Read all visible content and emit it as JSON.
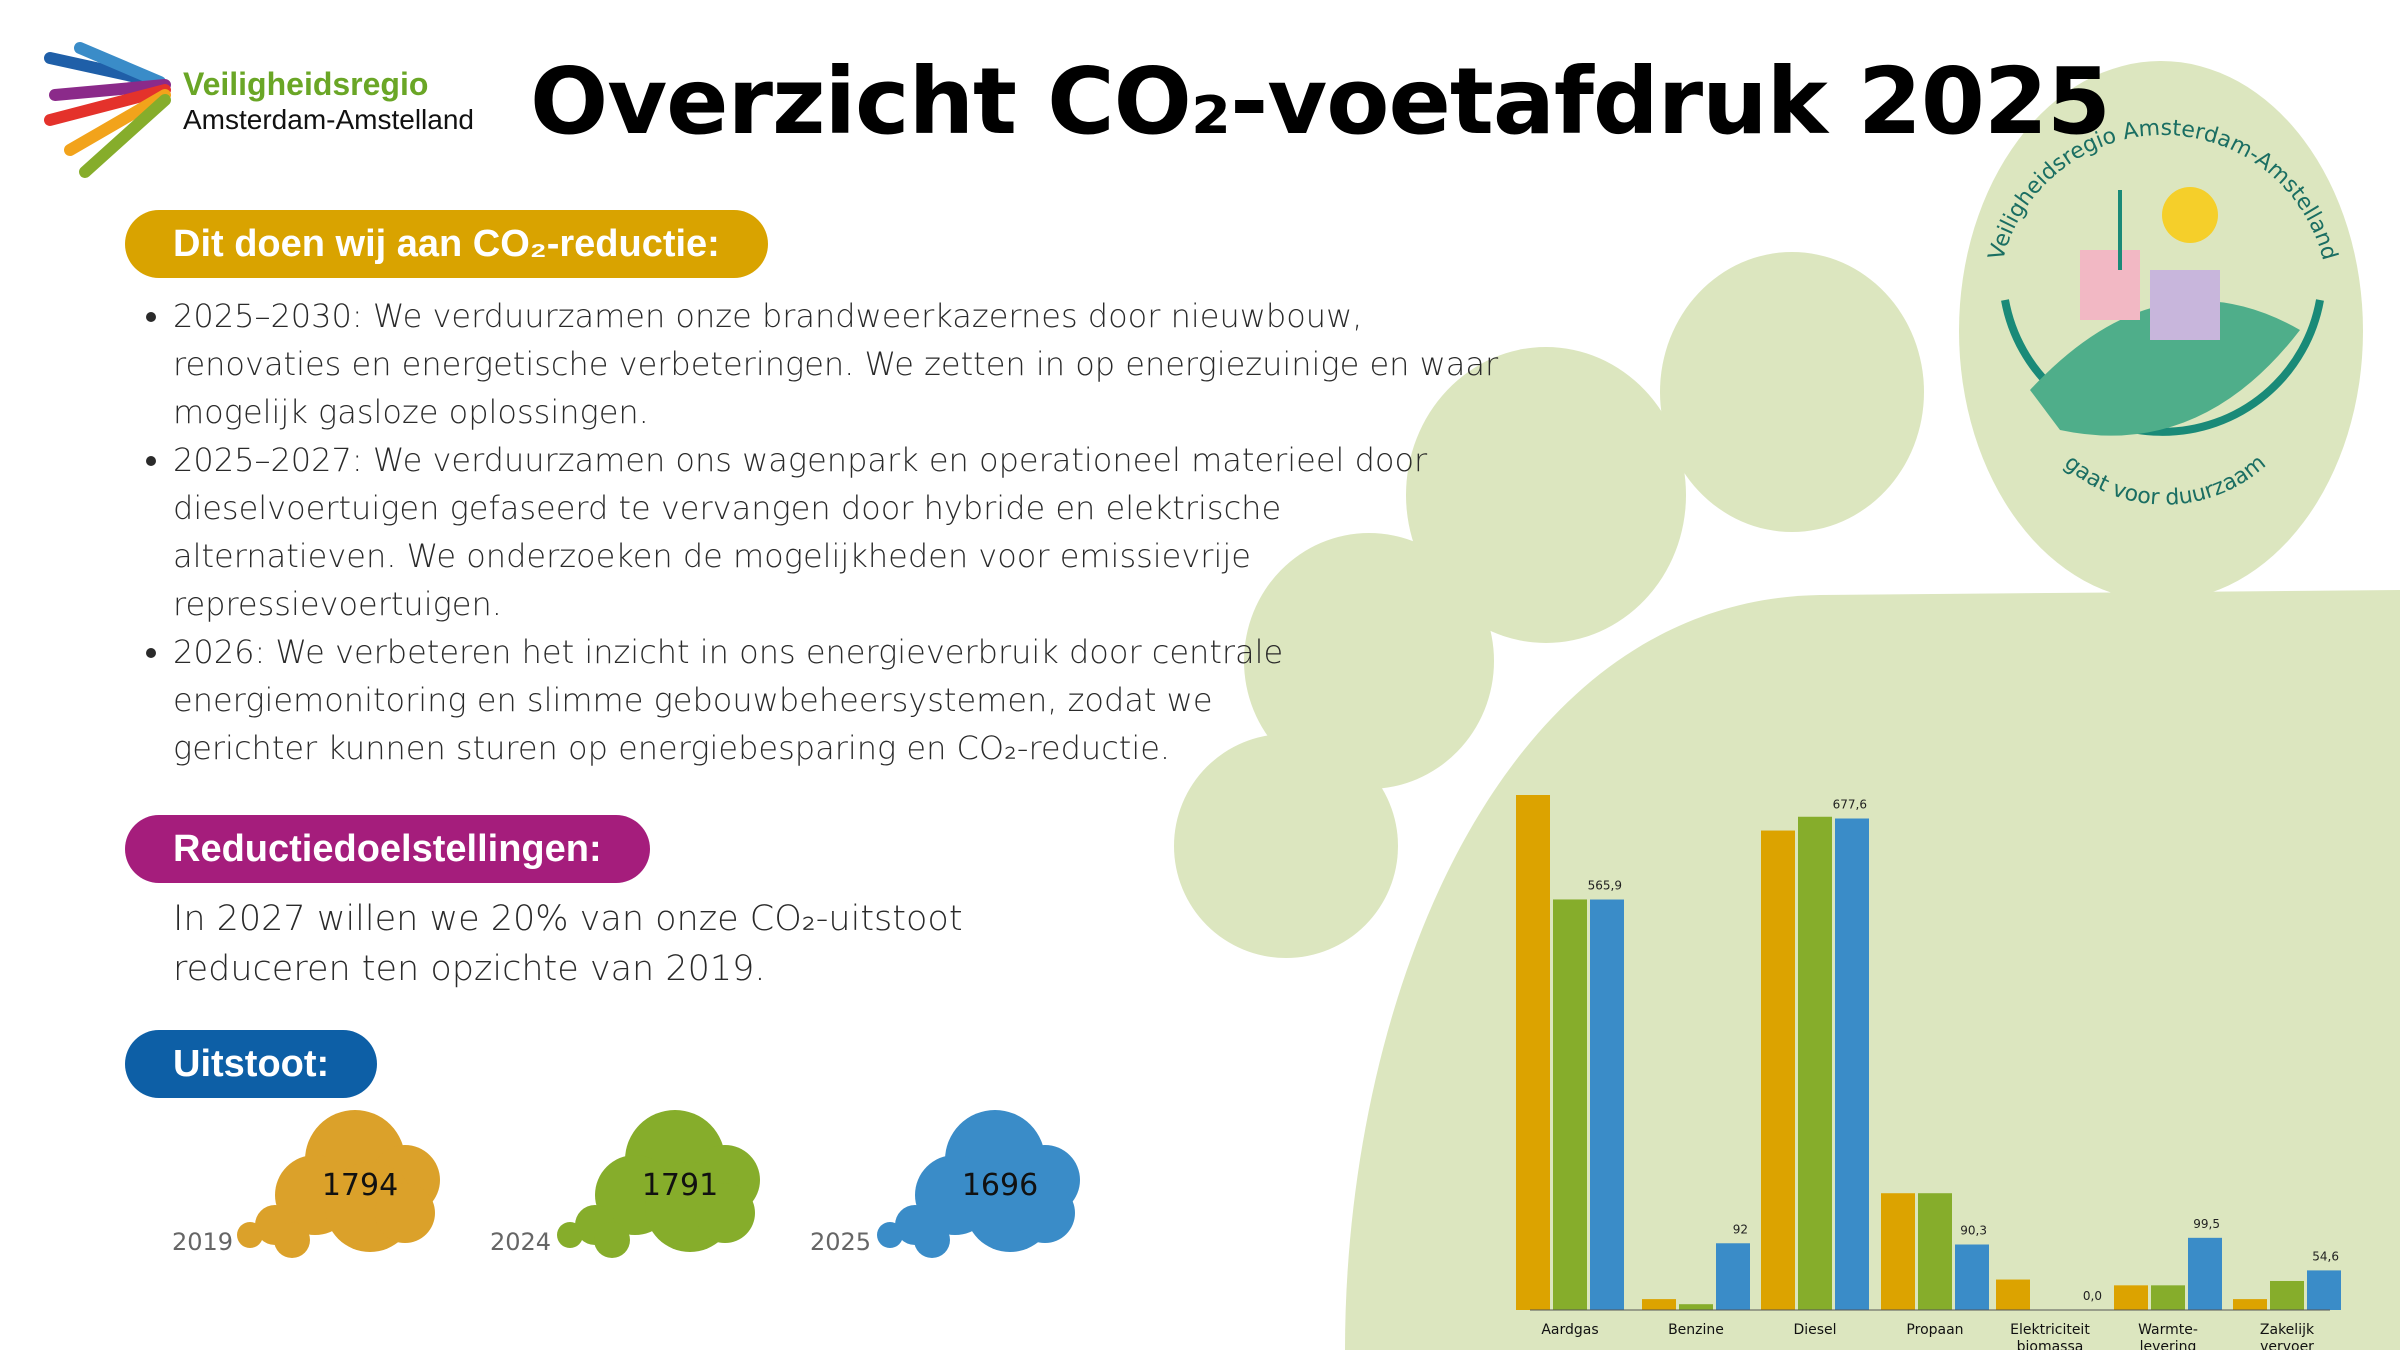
{
  "header": {
    "title": "Overzicht CO₂-voetafdruk 2025",
    "logo_line1": "Veiligheidsregio",
    "logo_line2": "Amsterdam-Amstelland"
  },
  "sections": [
    {
      "heading": "Dit doen wij aan CO₂-reductie:",
      "color": "#d9a300",
      "items": [
        "2025–2030: We verduurzamen onze brandweerkazernes door nieuwbouw, renovaties en energetische verbeteringen. We zetten in op energiezuinige en waar mogelijk gasloze oplossingen.",
        "2025–2027: We verduurzamen ons wagenpark en operationeel materieel door dieselvoertuigen gefaseerd te vervangen door hybride en elektrische alternatieven. We onderzoeken de mogelijkheden voor emissievrije repressievoertuigen.",
        "2026: We verbeteren het inzicht in ons energieverbruik door centrale energiemonitoring en slimme gebouwbeheersystemen, zodat we gerichter kunnen sturen op energiebesparing en CO₂-reductie."
      ]
    },
    {
      "heading": "Reductiedoelstellingen:",
      "color": "#a51d7c",
      "text": "In 2027 willen we 20% van onze CO₂-uitstoot reduceren ten opzichte van 2019."
    },
    {
      "heading": "Uitstoot:",
      "color": "#0d5fa6"
    }
  ],
  "emissions": [
    {
      "year": "2019",
      "value": 1794,
      "color": "#dba12a"
    },
    {
      "year": "2024",
      "value": 1791,
      "color": "#86ad2b"
    },
    {
      "year": "2025",
      "value": 1696,
      "color": "#3a8cc8"
    }
  ],
  "emblem": {
    "top_text": "Veiligheidsregio Amsterdam-Amstelland",
    "bottom_text": "gaat voor duurzaam"
  },
  "chart_data": {
    "type": "bar",
    "categories": [
      "Aardgas",
      "Benzine",
      "Diesel",
      "Propaan",
      "Elektriciteit biomassa",
      "Warmte-levering",
      "Zakelijk vervoer"
    ],
    "series": [
      {
        "name": "2019",
        "color": "#dca300",
        "values": [
          710,
          15,
          661,
          161,
          42,
          34,
          15
        ]
      },
      {
        "name": "2024",
        "color": "#86ad2b",
        "values": [
          566,
          8,
          680,
          161,
          0,
          34,
          40
        ]
      },
      {
        "name": "2025",
        "color": "#3a8cc8",
        "values": [
          565.9,
          92,
          677.6,
          90.3,
          0,
          99.5,
          54.6
        ],
        "value_labels": [
          "565,9",
          "92",
          "677,6",
          "90,3",
          "0,0",
          "99,5",
          "54,6"
        ]
      }
    ]
  }
}
